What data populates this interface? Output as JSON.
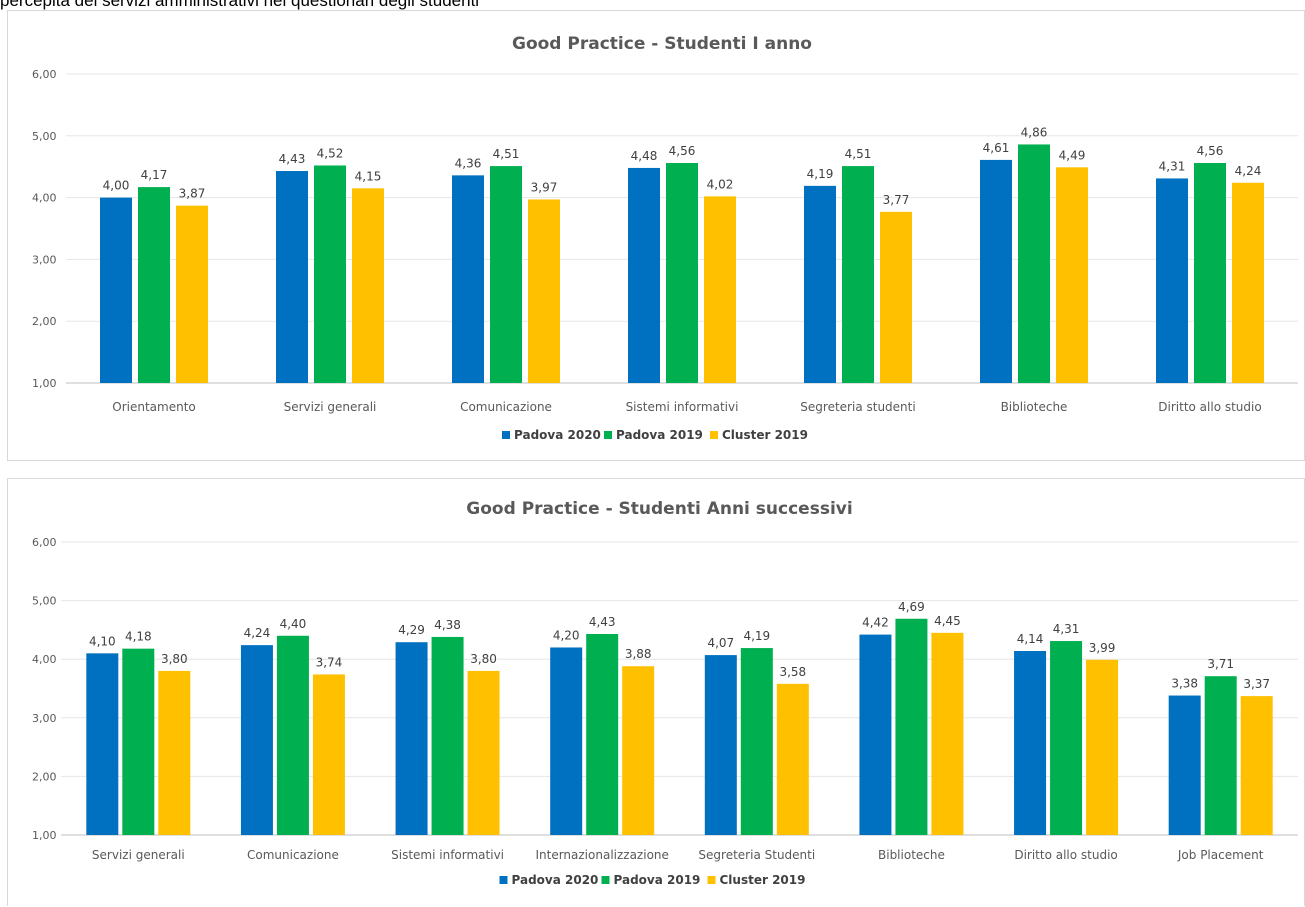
{
  "caption": "percepita dei servizi amministrativi nei questionari degli studenti",
  "colors": {
    "Padova 2020": "#0070c0",
    "Padova 2019": "#00b050",
    "Cluster 2019": "#ffc000"
  },
  "chart_data": [
    {
      "type": "bar",
      "title": "Good Practice - Studenti I anno",
      "xlabel": "",
      "ylabel": "",
      "ylim": [
        1,
        6
      ],
      "yticks": [
        "1,00",
        "2,00",
        "3,00",
        "4,00",
        "5,00",
        "6,00"
      ],
      "grid": true,
      "legend_position": "bottom",
      "categories": [
        "Orientamento",
        "Servizi generali",
        "Comunicazione",
        "Sistemi informativi",
        "Segreteria studenti",
        "Biblioteche",
        "Diritto allo studio"
      ],
      "series": [
        {
          "name": "Padova 2020",
          "values": [
            4.0,
            4.43,
            4.36,
            4.48,
            4.19,
            4.61,
            4.31
          ]
        },
        {
          "name": "Padova 2019",
          "values": [
            4.17,
            4.52,
            4.51,
            4.56,
            4.51,
            4.86,
            4.56
          ]
        },
        {
          "name": "Cluster 2019",
          "values": [
            3.87,
            4.15,
            3.97,
            4.02,
            3.77,
            4.49,
            4.24
          ]
        }
      ]
    },
    {
      "type": "bar",
      "title": "Good Practice  - Studenti Anni successivi",
      "xlabel": "",
      "ylabel": "",
      "ylim": [
        1,
        6
      ],
      "yticks": [
        "1,00",
        "2,00",
        "3,00",
        "4,00",
        "5,00",
        "6,00"
      ],
      "grid": true,
      "legend_position": "bottom",
      "categories": [
        "Servizi generali",
        "Comunicazione",
        "Sistemi informativi",
        "Internazionalizzazione",
        "Segreteria Studenti",
        "Biblioteche",
        "Diritto allo studio",
        "Job Placement"
      ],
      "series": [
        {
          "name": "Padova 2020",
          "values": [
            4.1,
            4.24,
            4.29,
            4.2,
            4.07,
            4.42,
            4.14,
            3.38
          ]
        },
        {
          "name": "Padova 2019",
          "values": [
            4.18,
            4.4,
            4.38,
            4.43,
            4.19,
            4.69,
            4.31,
            3.71
          ]
        },
        {
          "name": "Cluster 2019",
          "values": [
            3.8,
            3.74,
            3.8,
            3.88,
            3.58,
            4.45,
            3.99,
            3.37
          ]
        }
      ]
    }
  ]
}
